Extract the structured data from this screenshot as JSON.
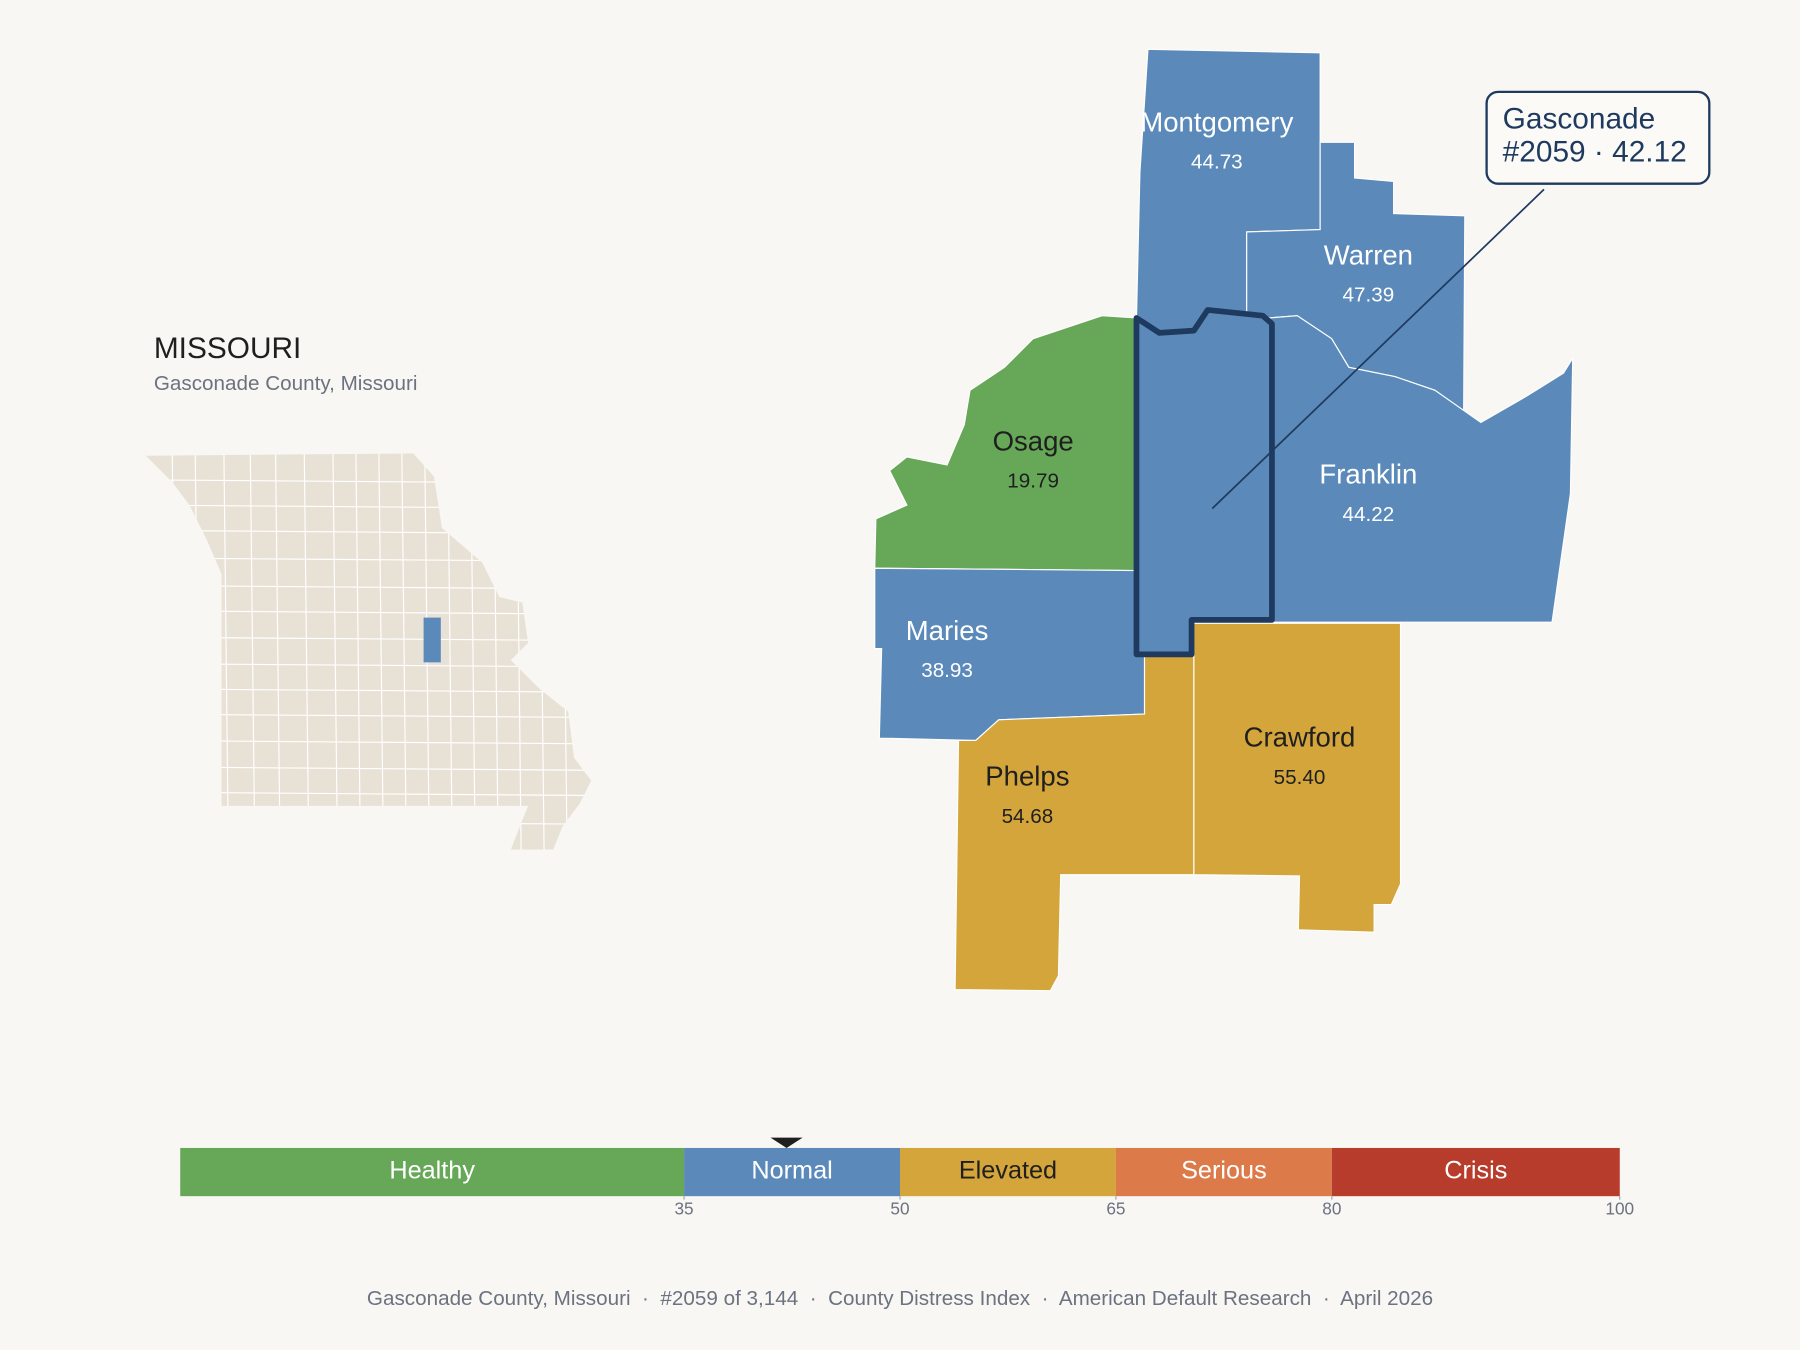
{
  "header": {
    "title": "MISSOURI",
    "subtitle": "Gasconade County, Missouri"
  },
  "focus": {
    "name": "Gasconade",
    "label": "#2059 · 42.12",
    "value": 42.12
  },
  "counties": [
    {
      "name": "Montgomery",
      "value": 44.73
    },
    {
      "name": "Warren",
      "value": 47.39
    },
    {
      "name": "Franklin",
      "value": 44.22
    },
    {
      "name": "Osage",
      "value": 19.79
    },
    {
      "name": "Maries",
      "value": 38.93
    },
    {
      "name": "Phelps",
      "value": 54.68
    },
    {
      "name": "Crawford",
      "value": 55.4,
      "value_label": "55.40"
    }
  ],
  "legend": {
    "range": [
      0,
      100
    ],
    "breaks": [
      35,
      50,
      65,
      80,
      100
    ],
    "bands": [
      {
        "label": "Healthy",
        "color": "#67a758"
      },
      {
        "label": "Normal",
        "color": "#5b8aba"
      },
      {
        "label": "Elevated",
        "color": "#d4a53a"
      },
      {
        "label": "Serious",
        "color": "#dc7a4a"
      },
      {
        "label": "Crisis",
        "color": "#b83c2c"
      }
    ]
  },
  "footer": "Gasconade County, Missouri  ·  #2059 of 3,144  ·  County Distress Index  ·  American Default Research  ·  April 2026"
}
